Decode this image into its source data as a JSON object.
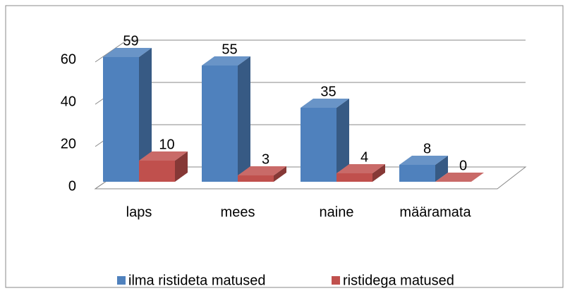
{
  "chart_data": {
    "type": "bar3d",
    "categories": [
      "laps",
      "mees",
      "naine",
      "määramata"
    ],
    "series": [
      {
        "name": "ilma ristideta matused",
        "color": "#4f81bd",
        "values": [
          59,
          55,
          35,
          8
        ]
      },
      {
        "name": "ristidega matused",
        "color": "#c0504d",
        "values": [
          10,
          3,
          4,
          0
        ]
      }
    ],
    "ylim": [
      0,
      60
    ],
    "yticks": [
      0,
      20,
      40,
      60
    ],
    "grid": true,
    "legend": "bottom"
  }
}
